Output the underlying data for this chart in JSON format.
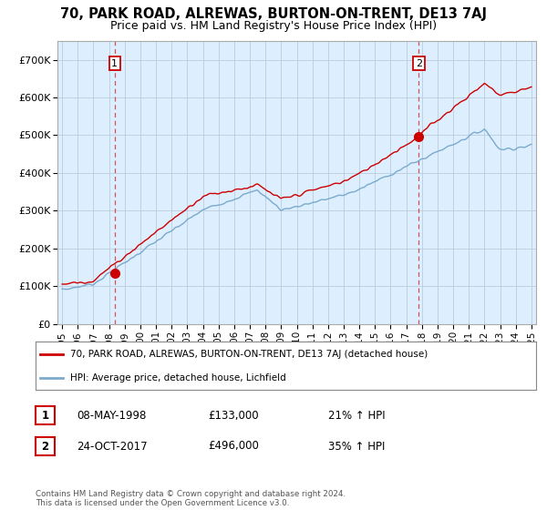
{
  "title": "70, PARK ROAD, ALREWAS, BURTON-ON-TRENT, DE13 7AJ",
  "subtitle": "Price paid vs. HM Land Registry's House Price Index (HPI)",
  "ylim": [
    0,
    750000
  ],
  "yticks": [
    0,
    100000,
    200000,
    300000,
    400000,
    500000,
    600000,
    700000
  ],
  "ytick_labels": [
    "£0",
    "£100K",
    "£200K",
    "£300K",
    "£400K",
    "£500K",
    "£600K",
    "£700K"
  ],
  "xlim_start": 1994.7,
  "xlim_end": 2025.3,
  "transaction1_year": 1998.36,
  "transaction1_price": 133000,
  "transaction1_label": "1",
  "transaction1_date": "08-MAY-1998",
  "transaction1_hpi": "21% ↑ HPI",
  "transaction2_year": 2017.81,
  "transaction2_price": 496000,
  "transaction2_label": "2",
  "transaction2_date": "24-OCT-2017",
  "transaction2_hpi": "35% ↑ HPI",
  "red_line_color": "#cc0000",
  "blue_line_color": "#7aaacc",
  "plot_bg_color": "#ddeeff",
  "grid_color": "#bbccdd",
  "background_color": "#ffffff",
  "legend_label_red": "70, PARK ROAD, ALREWAS, BURTON-ON-TRENT, DE13 7AJ (detached house)",
  "legend_label_blue": "HPI: Average price, detached house, Lichfield",
  "footer_text": "Contains HM Land Registry data © Crown copyright and database right 2024.\nThis data is licensed under the Open Government Licence v3.0.",
  "title_fontsize": 10.5,
  "subtitle_fontsize": 9,
  "tick_fontsize": 8
}
